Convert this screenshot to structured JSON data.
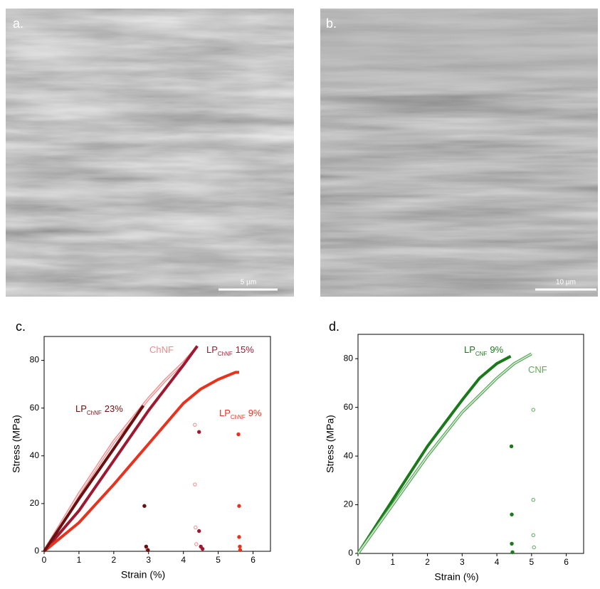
{
  "panels": {
    "a": {
      "label": "a.",
      "scale_bar": "5 µm"
    },
    "b": {
      "label": "b.",
      "scale_bar": "10 µm"
    }
  },
  "chart_data": [
    {
      "type": "line",
      "panel_label": "c.",
      "x_label": "Strain (%)",
      "y_label": "Stress (MPa)",
      "xlim": [
        0,
        6.5
      ],
      "ylim": [
        0,
        90
      ],
      "xticks": [
        0,
        1,
        2,
        3,
        4,
        5,
        6
      ],
      "yticks": [
        0,
        20,
        40,
        60,
        80
      ],
      "series": [
        {
          "name": "ChNF",
          "color": "#f08a8a",
          "marker": "open",
          "x": [
            0,
            0.5,
            1,
            1.5,
            2,
            2.5,
            3,
            3.5,
            4,
            4.3,
            null,
            4.33,
            null,
            4.33,
            null,
            4.35,
            null,
            4.37,
            null,
            2.95
          ],
          "values": [
            0,
            12,
            24,
            35,
            46,
            55,
            64,
            72,
            79,
            84,
            null,
            53,
            null,
            28,
            null,
            10,
            null,
            3,
            null,
            1
          ]
        },
        {
          "name": "LP",
          "name_sub": "ChNF",
          "name_suffix": "15%",
          "color": "#a01830",
          "marker": "filled",
          "x": [
            0,
            1,
            2,
            3,
            4,
            4.4,
            null,
            4.45,
            null,
            4.45,
            null,
            4.5,
            null,
            4.55
          ],
          "values": [
            0,
            17,
            38,
            59,
            78,
            86,
            null,
            50,
            null,
            8.5,
            null,
            2,
            null,
            1
          ]
        },
        {
          "name": "LP",
          "name_sub": "ChNF",
          "name_suffix": "9%",
          "color": "#e8321e",
          "marker": "filled",
          "x": [
            0,
            1,
            2,
            3,
            4,
            4.5,
            5,
            5.5,
            5.6,
            null,
            5.58,
            null,
            5.6,
            null,
            5.6,
            null,
            5.62,
            null,
            5.63
          ],
          "values": [
            0,
            12,
            28,
            45,
            62,
            68,
            72,
            75,
            75,
            null,
            49,
            null,
            19,
            null,
            6,
            null,
            2,
            null,
            0.5
          ]
        },
        {
          "name": "LP",
          "name_sub": "ChNF",
          "name_suffix": "23%",
          "color": "#6b1010",
          "marker": "filled",
          "x": [
            0,
            1,
            2,
            2.8,
            2.85,
            null,
            2.88,
            null,
            2.93,
            null,
            2.98
          ],
          "values": [
            0,
            22,
            43,
            60,
            61,
            null,
            19,
            null,
            2,
            null,
            0.5
          ]
        }
      ]
    },
    {
      "type": "line",
      "panel_label": "d.",
      "x_label": "Strain (%)",
      "y_label": "Stress (MPa)",
      "xlim": [
        0,
        6.5
      ],
      "ylim": [
        0,
        90
      ],
      "xticks": [
        0,
        1,
        2,
        3,
        4,
        5,
        6
      ],
      "yticks": [
        0,
        20,
        40,
        60,
        80
      ],
      "series": [
        {
          "name": "LP",
          "name_sub": "CNF",
          "name_suffix": "9%",
          "color": "#1a7a1a",
          "marker": "filled",
          "x": [
            0,
            1,
            2,
            3,
            3.5,
            4,
            4.4,
            null,
            4.42,
            null,
            4.43,
            null,
            4.43,
            null,
            4.45
          ],
          "values": [
            0,
            22,
            44,
            63,
            72,
            78,
            81,
            null,
            44,
            null,
            16,
            null,
            4,
            null,
            0.5
          ]
        },
        {
          "name": "CNF",
          "color": "#5aaa5a",
          "marker": "open",
          "x": [
            0,
            1,
            2,
            3,
            4,
            4.5,
            5,
            null,
            5.05,
            null,
            5.05,
            null,
            5.05,
            null,
            5.07
          ],
          "values": [
            0,
            20,
            40,
            58,
            72,
            78,
            82,
            null,
            59,
            null,
            22,
            null,
            7.5,
            null,
            2.5
          ]
        }
      ]
    }
  ]
}
